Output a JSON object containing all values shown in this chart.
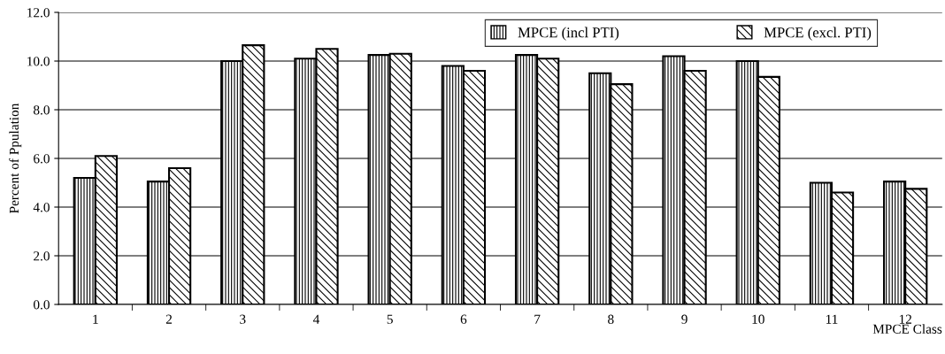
{
  "chart_data": {
    "type": "bar",
    "xlabel": "MPCE Class",
    "ylabel": "Percent of Ppulation",
    "categories": [
      "1",
      "2",
      "3",
      "4",
      "5",
      "6",
      "7",
      "8",
      "9",
      "10",
      "11",
      "12"
    ],
    "series": [
      {
        "name": "MPCE (incl PTI)",
        "color": "#000000",
        "values": [
          5.2,
          5.05,
          10.0,
          10.1,
          10.25,
          9.8,
          10.25,
          9.5,
          10.2,
          10.0,
          5.0,
          5.05
        ]
      },
      {
        "name": "MPCE (excl. PTI)",
        "color": "#000000",
        "values": [
          6.1,
          5.6,
          10.65,
          10.5,
          10.3,
          9.6,
          10.1,
          9.05,
          9.6,
          9.35,
          4.6,
          4.75
        ]
      }
    ],
    "ylim": [
      0,
      12
    ],
    "yticks": [
      {
        "value": 0,
        "label": "0.0"
      },
      {
        "value": 2,
        "label": "2.0"
      },
      {
        "value": 4,
        "label": "4.0"
      },
      {
        "value": 6,
        "label": "6.0"
      },
      {
        "value": 8,
        "label": "8.0"
      },
      {
        "value": 10,
        "label": "10.0"
      },
      {
        "value": 12,
        "label": "12.0"
      }
    ],
    "grid": "y",
    "legend": "top right"
  }
}
